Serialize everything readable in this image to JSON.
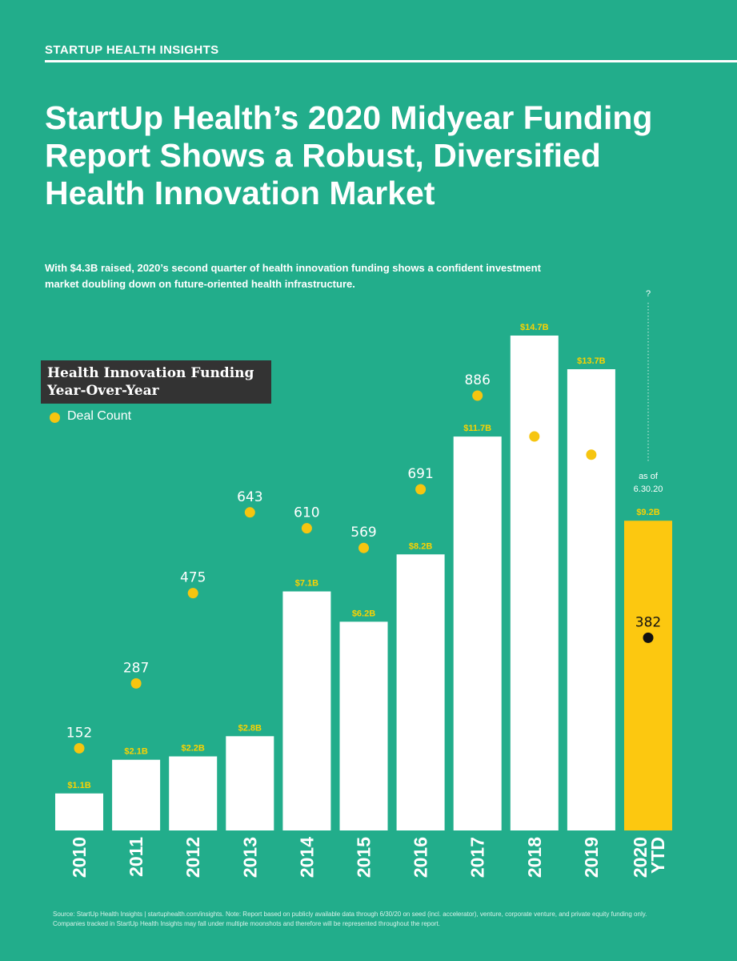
{
  "kicker": "STARTUP HEALTH INSIGHTS",
  "headline": "StartUp Health’s 2020 Midyear Funding Report Shows a Robust, Diversified Health Innovation Market",
  "dek": "With $4.3B raised, 2020’s second quarter of health innovation funding shows a confident investment market doubling down on future-oriented health infrastructure.",
  "chart_title": "Health Innovation Funding Year-Over-Year",
  "legend_label": "Deal Count",
  "source_note": "Source: StartUp Health Insights | startuphealth.com/insights. Note: Report based on publicly available data through 6/30/20 on seed (incl. accelerator), venture, corporate venture, and private equity funding only. Companies tracked in StartUp Health Insights may fall under multiple moonshots and therefore will be represented throughout the report.",
  "colors": {
    "background": "#22ad8b",
    "bar": "#ffffff",
    "highlight_bar": "#fcc810",
    "value_label": "#fcd200",
    "deal_dot": "#f6c510",
    "deal_dot_highlight": "#111111",
    "title_box": "#333333"
  },
  "chart_data": {
    "type": "bar",
    "title": "Health Innovation Funding Year-Over-Year",
    "xlabel": "",
    "ylabel": "",
    "ylim": [
      0,
      14.7
    ],
    "grid": false,
    "legend": "top-left",
    "categories": [
      "2010",
      "2011",
      "2012",
      "2013",
      "2014",
      "2015",
      "2016",
      "2017",
      "2018",
      "2019",
      "2020 YTD"
    ],
    "series": [
      {
        "name": "Funding ($B)",
        "values": [
          1.1,
          2.1,
          2.2,
          2.8,
          7.1,
          6.2,
          8.2,
          11.7,
          14.7,
          13.7,
          9.2
        ],
        "labels": [
          "$1.1B",
          "$2.1B",
          "$2.2B",
          "$2.8B",
          "$7.1B",
          "$6.2B",
          "$8.2B",
          "$11.7B",
          "$14.7B",
          "$13.7B",
          "$9.2B"
        ]
      },
      {
        "name": "Deal Count",
        "type": "scatter",
        "values": [
          152,
          287,
          475,
          643,
          610,
          569,
          691,
          886,
          801,
          763,
          382
        ]
      }
    ],
    "annotations": [
      {
        "category": "2020 YTD",
        "text": "as of 6.30.20"
      },
      {
        "category": "2020 YTD",
        "text": "?"
      }
    ]
  }
}
